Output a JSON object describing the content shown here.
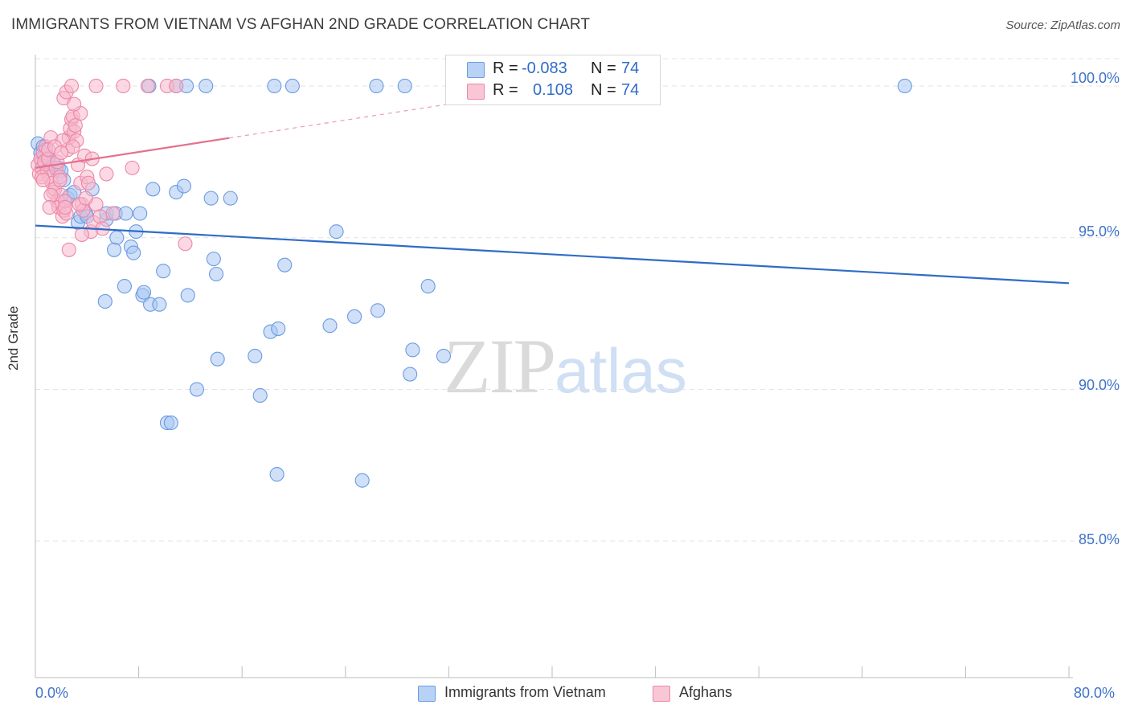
{
  "header": {
    "title": "IMMIGRANTS FROM VIETNAM VS AFGHAN 2ND GRADE CORRELATION CHART",
    "source": "Source: ZipAtlas.com"
  },
  "legend": {
    "series": [
      {
        "r_label": "R =",
        "r_value": "-0.083",
        "n_label": "N =",
        "n_value": "74"
      },
      {
        "r_label": "R =",
        "r_value": "0.108",
        "n_label": "N =",
        "n_value": "74"
      }
    ]
  },
  "watermark": {
    "zip": "ZIP",
    "atlas": "atlas"
  },
  "colors": {
    "vietnam_fill": "#a8c6f2",
    "vietnam_stroke": "#6b9be0",
    "vietnam_line": "#2f6cc7",
    "afghan_fill": "#f7b8cc",
    "afghan_stroke": "#ec88a8",
    "afghan_line": "#e5708f",
    "grid": "#e3e3e3",
    "tick_text": "#3f73c9"
  },
  "chart_data": {
    "type": "scatter",
    "title": "IMMIGRANTS FROM VIETNAM VS AFGHAN 2ND GRADE CORRELATION CHART",
    "xlabel": "",
    "ylabel": "2nd Grade",
    "xlim": [
      0,
      80
    ],
    "ylim": [
      80.5,
      100.9
    ],
    "x_tick_labels": [
      "0.0%",
      "80.0%"
    ],
    "y_ticks": [
      85,
      90,
      95,
      100
    ],
    "y_tick_labels": [
      "85.0%",
      "90.0%",
      "95.0%",
      "100.0%"
    ],
    "grid": true,
    "legend_position": "top-center",
    "series": [
      {
        "name": "Immigrants from Vietnam",
        "R": -0.083,
        "N": 74,
        "trend": {
          "x": [
            0,
            80
          ],
          "y": [
            95.4,
            93.5
          ],
          "solid_to": 80
        },
        "points": [
          [
            0.2,
            98.1
          ],
          [
            0.4,
            97.8
          ],
          [
            0.5,
            97.5
          ],
          [
            0.6,
            98.0
          ],
          [
            0.7,
            97.7
          ],
          [
            0.8,
            97.9
          ],
          [
            0.9,
            97.6
          ],
          [
            1.0,
            97.5
          ],
          [
            1.2,
            97.3
          ],
          [
            1.5,
            97.4
          ],
          [
            1.8,
            97.3
          ],
          [
            2.0,
            97.2
          ],
          [
            2.2,
            96.9
          ],
          [
            2.5,
            96.3
          ],
          [
            2.7,
            96.4
          ],
          [
            3.0,
            96.5
          ],
          [
            3.3,
            95.5
          ],
          [
            3.5,
            95.7
          ],
          [
            3.9,
            95.8
          ],
          [
            4.0,
            95.7
          ],
          [
            4.4,
            96.6
          ],
          [
            5.5,
            95.6
          ],
          [
            5.5,
            95.8
          ],
          [
            6.2,
            95.8
          ],
          [
            7.0,
            95.8
          ],
          [
            8.1,
            95.8
          ],
          [
            6.3,
            95.0
          ],
          [
            6.1,
            94.6
          ],
          [
            7.4,
            94.7
          ],
          [
            7.6,
            94.5
          ],
          [
            7.8,
            95.2
          ],
          [
            9.1,
            96.6
          ],
          [
            10.9,
            96.5
          ],
          [
            11.5,
            96.7
          ],
          [
            13.6,
            96.3
          ],
          [
            15.1,
            96.3
          ],
          [
            9.9,
            93.9
          ],
          [
            13.8,
            94.3
          ],
          [
            14.0,
            93.8
          ],
          [
            19.3,
            94.1
          ],
          [
            6.9,
            93.4
          ],
          [
            8.3,
            93.1
          ],
          [
            8.4,
            93.2
          ],
          [
            8.9,
            92.8
          ],
          [
            9.6,
            92.8
          ],
          [
            5.4,
            92.9
          ],
          [
            11.8,
            93.1
          ],
          [
            23.3,
            95.2
          ],
          [
            30.4,
            93.4
          ],
          [
            18.2,
            91.9
          ],
          [
            18.8,
            92.0
          ],
          [
            22.8,
            92.1
          ],
          [
            24.7,
            92.4
          ],
          [
            26.5,
            92.6
          ],
          [
            17.0,
            91.1
          ],
          [
            14.1,
            91.0
          ],
          [
            29.2,
            91.3
          ],
          [
            31.6,
            91.1
          ],
          [
            29.0,
            90.5
          ],
          [
            12.5,
            90.0
          ],
          [
            17.4,
            89.8
          ],
          [
            10.2,
            88.9
          ],
          [
            10.5,
            88.9
          ],
          [
            18.7,
            87.2
          ],
          [
            25.3,
            87.0
          ],
          [
            8.8,
            100.0
          ],
          [
            10.9,
            100.0
          ],
          [
            11.7,
            100.0
          ],
          [
            13.2,
            100.0
          ],
          [
            18.5,
            100.0
          ],
          [
            19.9,
            100.0
          ],
          [
            26.4,
            100.0
          ],
          [
            28.6,
            100.0
          ],
          [
            67.3,
            100.0
          ]
        ]
      },
      {
        "name": "Afghans",
        "R": 0.108,
        "N": 74,
        "trend": {
          "x": [
            0,
            35
          ],
          "y": [
            97.3,
            99.6
          ],
          "solid_to": 15
        },
        "points": [
          [
            0.2,
            97.4
          ],
          [
            0.3,
            97.1
          ],
          [
            0.4,
            97.6
          ],
          [
            0.5,
            97.3
          ],
          [
            0.6,
            97.8
          ],
          [
            0.7,
            97.5
          ],
          [
            0.8,
            98.0
          ],
          [
            0.9,
            97.2
          ],
          [
            1.0,
            97.6
          ],
          [
            1.1,
            97.0
          ],
          [
            1.2,
            98.3
          ],
          [
            1.3,
            96.8
          ],
          [
            1.4,
            96.5
          ],
          [
            1.5,
            96.6
          ],
          [
            1.6,
            97.3
          ],
          [
            1.7,
            96.2
          ],
          [
            1.8,
            96.0
          ],
          [
            1.9,
            97.0
          ],
          [
            2.0,
            96.4
          ],
          [
            2.1,
            95.7
          ],
          [
            2.2,
            95.9
          ],
          [
            2.3,
            96.2
          ],
          [
            2.4,
            95.8
          ],
          [
            2.5,
            97.9
          ],
          [
            2.6,
            98.3
          ],
          [
            2.7,
            98.6
          ],
          [
            2.8,
            98.9
          ],
          [
            2.9,
            99.0
          ],
          [
            3.0,
            98.5
          ],
          [
            3.1,
            98.7
          ],
          [
            3.2,
            98.2
          ],
          [
            3.3,
            97.4
          ],
          [
            3.5,
            96.8
          ],
          [
            3.6,
            96.1
          ],
          [
            3.7,
            95.9
          ],
          [
            3.8,
            97.7
          ],
          [
            4.0,
            97.0
          ],
          [
            4.1,
            96.8
          ],
          [
            4.3,
            95.2
          ],
          [
            4.5,
            95.5
          ],
          [
            5.0,
            95.7
          ],
          [
            5.5,
            97.1
          ],
          [
            7.5,
            97.3
          ],
          [
            11.6,
            94.8
          ],
          [
            2.6,
            94.6
          ],
          [
            3.6,
            95.1
          ],
          [
            2.2,
            99.6
          ],
          [
            3.5,
            99.1
          ],
          [
            2.4,
            99.8
          ],
          [
            3.0,
            99.4
          ],
          [
            2.1,
            98.2
          ],
          [
            2.9,
            98.0
          ],
          [
            1.0,
            97.9
          ],
          [
            1.2,
            96.4
          ],
          [
            0.5,
            97.0
          ],
          [
            0.6,
            96.9
          ],
          [
            1.5,
            98.0
          ],
          [
            1.7,
            97.5
          ],
          [
            2.0,
            97.8
          ],
          [
            1.9,
            96.9
          ],
          [
            3.4,
            96.1
          ],
          [
            4.7,
            96.1
          ],
          [
            5.2,
            95.3
          ],
          [
            6.0,
            95.8
          ],
          [
            1.1,
            96.0
          ],
          [
            2.3,
            96.0
          ],
          [
            3.9,
            96.3
          ],
          [
            4.4,
            97.6
          ],
          [
            2.8,
            100.0
          ],
          [
            4.7,
            100.0
          ],
          [
            6.8,
            100.0
          ],
          [
            8.7,
            100.0
          ],
          [
            10.2,
            100.0
          ],
          [
            10.9,
            100.0
          ]
        ]
      }
    ]
  },
  "bottom_legend": [
    "Immigrants from Vietnam",
    "Afghans"
  ]
}
